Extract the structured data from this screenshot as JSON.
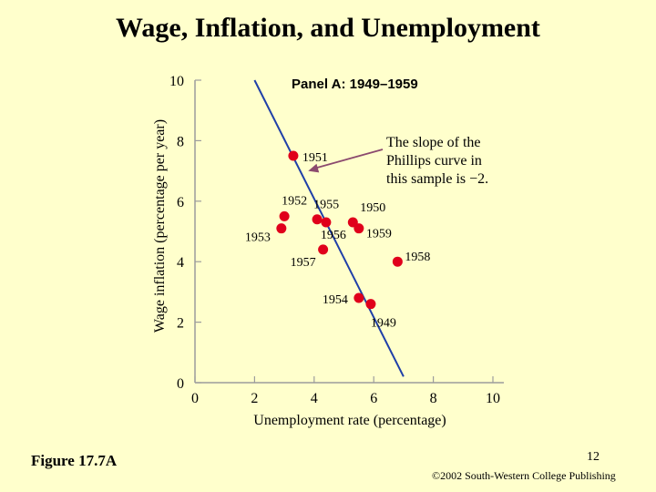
{
  "slide": {
    "title": "Wage, Inflation, and Unemployment",
    "figure_label": "Figure 17.7A",
    "page_number": "12",
    "copyright": "©2002 South-Western College Publishing"
  },
  "chart_data": {
    "type": "scatter",
    "panel_title": "Panel A: 1949–1959",
    "xlabel": "Unemployment rate (percentage)",
    "ylabel": "Wage inflation (percentage per year)",
    "xlim": [
      0,
      10
    ],
    "ylim": [
      0,
      10
    ],
    "x_ticks": [
      "0",
      "2",
      "4",
      "6",
      "8",
      "10"
    ],
    "y_ticks": [
      "0",
      "2",
      "4",
      "6",
      "8",
      "10"
    ],
    "grid": false,
    "point_color": "#e0001b",
    "line_color": "#1f3fa8",
    "annotation_color": "#8b4a6e",
    "points": [
      {
        "label": "1951",
        "x": 3.3,
        "y": 7.5
      },
      {
        "label": "1952",
        "x": 3.0,
        "y": 5.5
      },
      {
        "label": "1953",
        "x": 2.9,
        "y": 5.1
      },
      {
        "label": "1955",
        "x": 4.1,
        "y": 5.4
      },
      {
        "label": "1956",
        "x": 4.4,
        "y": 5.3
      },
      {
        "label": "1950",
        "x": 5.3,
        "y": 5.3
      },
      {
        "label": "1959",
        "x": 5.5,
        "y": 5.1
      },
      {
        "label": "1957",
        "x": 4.3,
        "y": 4.4
      },
      {
        "label": "1958",
        "x": 6.8,
        "y": 4.0
      },
      {
        "label": "1954",
        "x": 5.5,
        "y": 2.8
      },
      {
        "label": "1949",
        "x": 5.9,
        "y": 2.6
      }
    ],
    "fit_line": {
      "x": [
        2.0,
        7.0
      ],
      "y": [
        10.0,
        0.2
      ]
    },
    "annotation": {
      "lines": [
        "The slope of the",
        "Phillips curve in",
        "this sample is −2."
      ],
      "target": {
        "x": 3.8,
        "y": 7.0
      }
    }
  }
}
